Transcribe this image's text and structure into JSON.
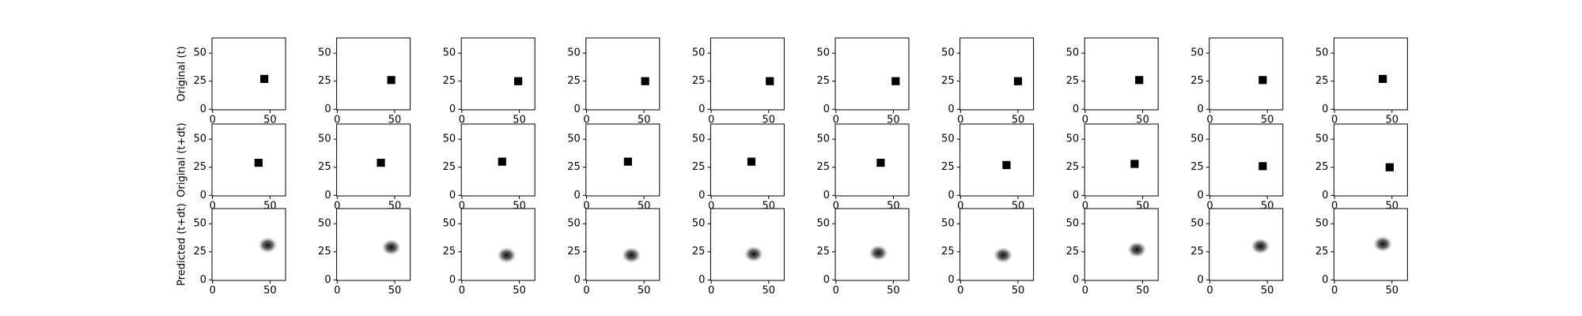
{
  "chart_data": [
    {
      "type": "square",
      "ylabel": "Original (t)",
      "color": "#000000",
      "xlim": [
        -0.5,
        63.5
      ],
      "ylim": [
        63.5,
        -0.5
      ],
      "xticks": [
        0,
        50
      ],
      "yticks": [
        0,
        25,
        50
      ],
      "x": [
        45,
        47,
        49,
        51,
        51,
        52,
        50,
        47,
        46,
        42
      ],
      "y": [
        27,
        26,
        25,
        25,
        25,
        25,
        25,
        26,
        26,
        27
      ]
    },
    {
      "type": "square",
      "ylabel": "Original (t+dt)",
      "color": "#000000",
      "xlim": [
        -0.5,
        63.5
      ],
      "ylim": [
        63.5,
        -0.5
      ],
      "xticks": [
        0,
        50
      ],
      "yticks": [
        0,
        25,
        50
      ],
      "x": [
        40,
        38,
        35,
        36,
        35,
        39,
        40,
        43,
        46,
        48
      ],
      "y": [
        29,
        29,
        30,
        30,
        30,
        29,
        27,
        28,
        26,
        25
      ]
    },
    {
      "type": "blob",
      "ylabel": "Predicted (t+dt)",
      "color": "#111111",
      "xlim": [
        -0.5,
        63.5
      ],
      "ylim": [
        63.5,
        -0.5
      ],
      "xticks": [
        0,
        50
      ],
      "yticks": [
        0,
        25,
        50
      ],
      "x": [
        48,
        47,
        39,
        39,
        37,
        37,
        37,
        45,
        44,
        42
      ],
      "y": [
        31,
        29,
        22,
        22,
        23,
        24,
        22,
        27,
        30,
        32
      ]
    }
  ]
}
